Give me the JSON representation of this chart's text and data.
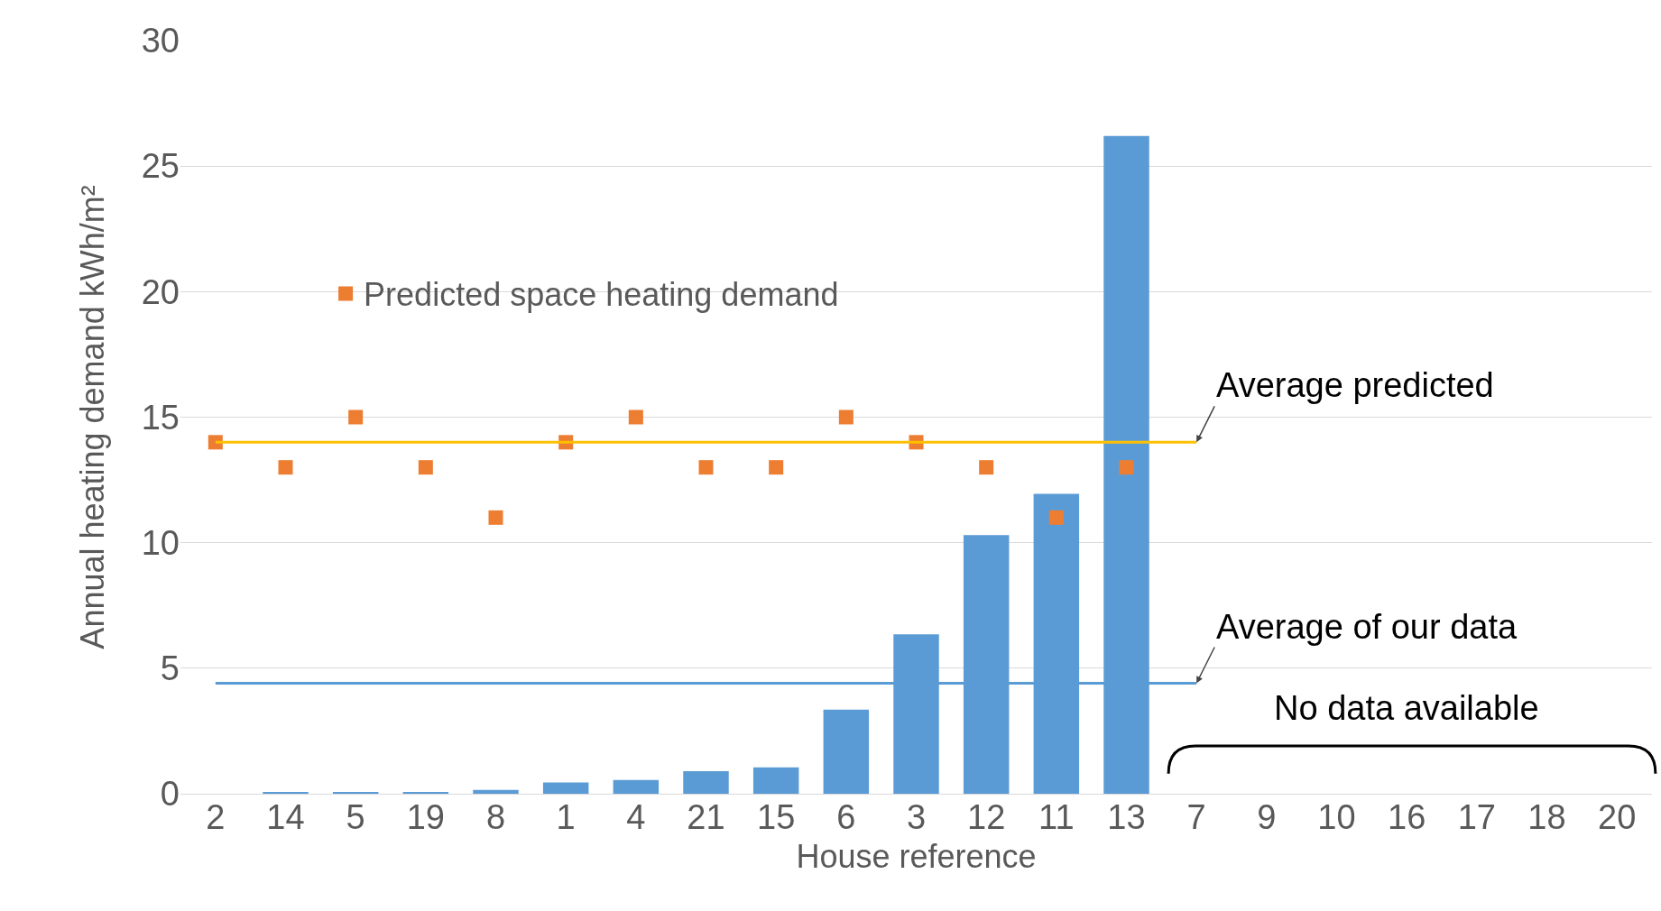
{
  "chart_data": {
    "type": "bar",
    "xlabel": "House reference",
    "ylabel": "Annual heating demand kWh/m²",
    "categories": [
      "2",
      "14",
      "5",
      "19",
      "8",
      "1",
      "4",
      "21",
      "15",
      "6",
      "3",
      "12",
      "11",
      "13",
      "7",
      "9",
      "10",
      "16",
      "17",
      "18",
      "20"
    ],
    "series": [
      {
        "type": "bar",
        "color": "#5b9bd5",
        "values": [
          0,
          0.05,
          0.05,
          0.05,
          0.15,
          0.45,
          0.55,
          0.9,
          1.05,
          3.35,
          6.35,
          10.3,
          11.95,
          26.2,
          null,
          null,
          null,
          null,
          null,
          null,
          null
        ]
      },
      {
        "type": "scatter",
        "name": "Predicted space heating demand",
        "color": "#ed7d31",
        "values": [
          14,
          13,
          15,
          13,
          11,
          14,
          15,
          13,
          13,
          15,
          14,
          13,
          11,
          13,
          null,
          null,
          null,
          null,
          null,
          null,
          null
        ]
      }
    ],
    "ylim": [
      0,
      30
    ],
    "yticks": [
      0,
      5,
      10,
      15,
      20,
      25,
      30
    ],
    "grid": "y",
    "marker": "square",
    "legend": "top left",
    "ref_lines": [
      {
        "axis": "y",
        "value": 14,
        "label": "Average predicted",
        "color": "#ffc000"
      },
      {
        "axis": "y",
        "value": 4.4,
        "label": "Average of our data",
        "color": "#5b9bd5"
      }
    ],
    "annotations": [
      "No data available"
    ]
  }
}
